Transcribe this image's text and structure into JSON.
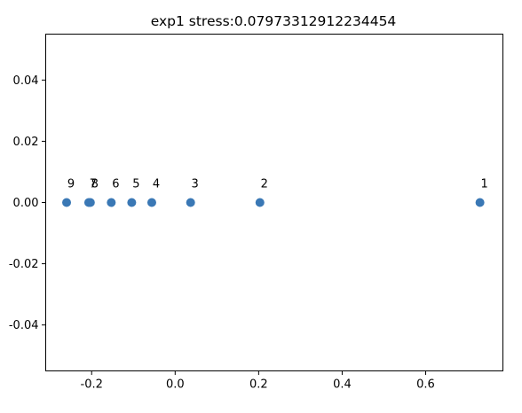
{
  "chart_data": {
    "type": "scatter",
    "title": "exp1 stress:0.07973312912234454",
    "xlabel": "",
    "ylabel": "",
    "xlim": [
      -0.31,
      0.785
    ],
    "ylim": [
      -0.055,
      0.055
    ],
    "xticks": [
      -0.2,
      0.0,
      0.2,
      0.4,
      0.6
    ],
    "xtick_labels": [
      "-0.2",
      "0.0",
      "0.2",
      "0.4",
      "0.6"
    ],
    "yticks": [
      0.04,
      0.02,
      0.0,
      -0.02,
      -0.04
    ],
    "ytick_labels": [
      "0.04",
      "0.02",
      "0.00",
      "-0.02",
      "-0.04"
    ],
    "grid": false,
    "legend": "none",
    "marker_color": "#3a78b5",
    "points": [
      {
        "label": "1",
        "x": 0.73,
        "y": 0.0
      },
      {
        "label": "2",
        "x": 0.203,
        "y": 0.0
      },
      {
        "label": "3",
        "x": 0.037,
        "y": 0.0
      },
      {
        "label": "4",
        "x": -0.056,
        "y": 0.0
      },
      {
        "label": "5",
        "x": -0.104,
        "y": 0.0
      },
      {
        "label": "6",
        "x": -0.153,
        "y": 0.0
      },
      {
        "label": "7",
        "x": -0.207,
        "y": 0.0
      },
      {
        "label": "8",
        "x": -0.203,
        "y": 0.0
      },
      {
        "label": "9",
        "x": -0.26,
        "y": 0.0
      }
    ]
  }
}
